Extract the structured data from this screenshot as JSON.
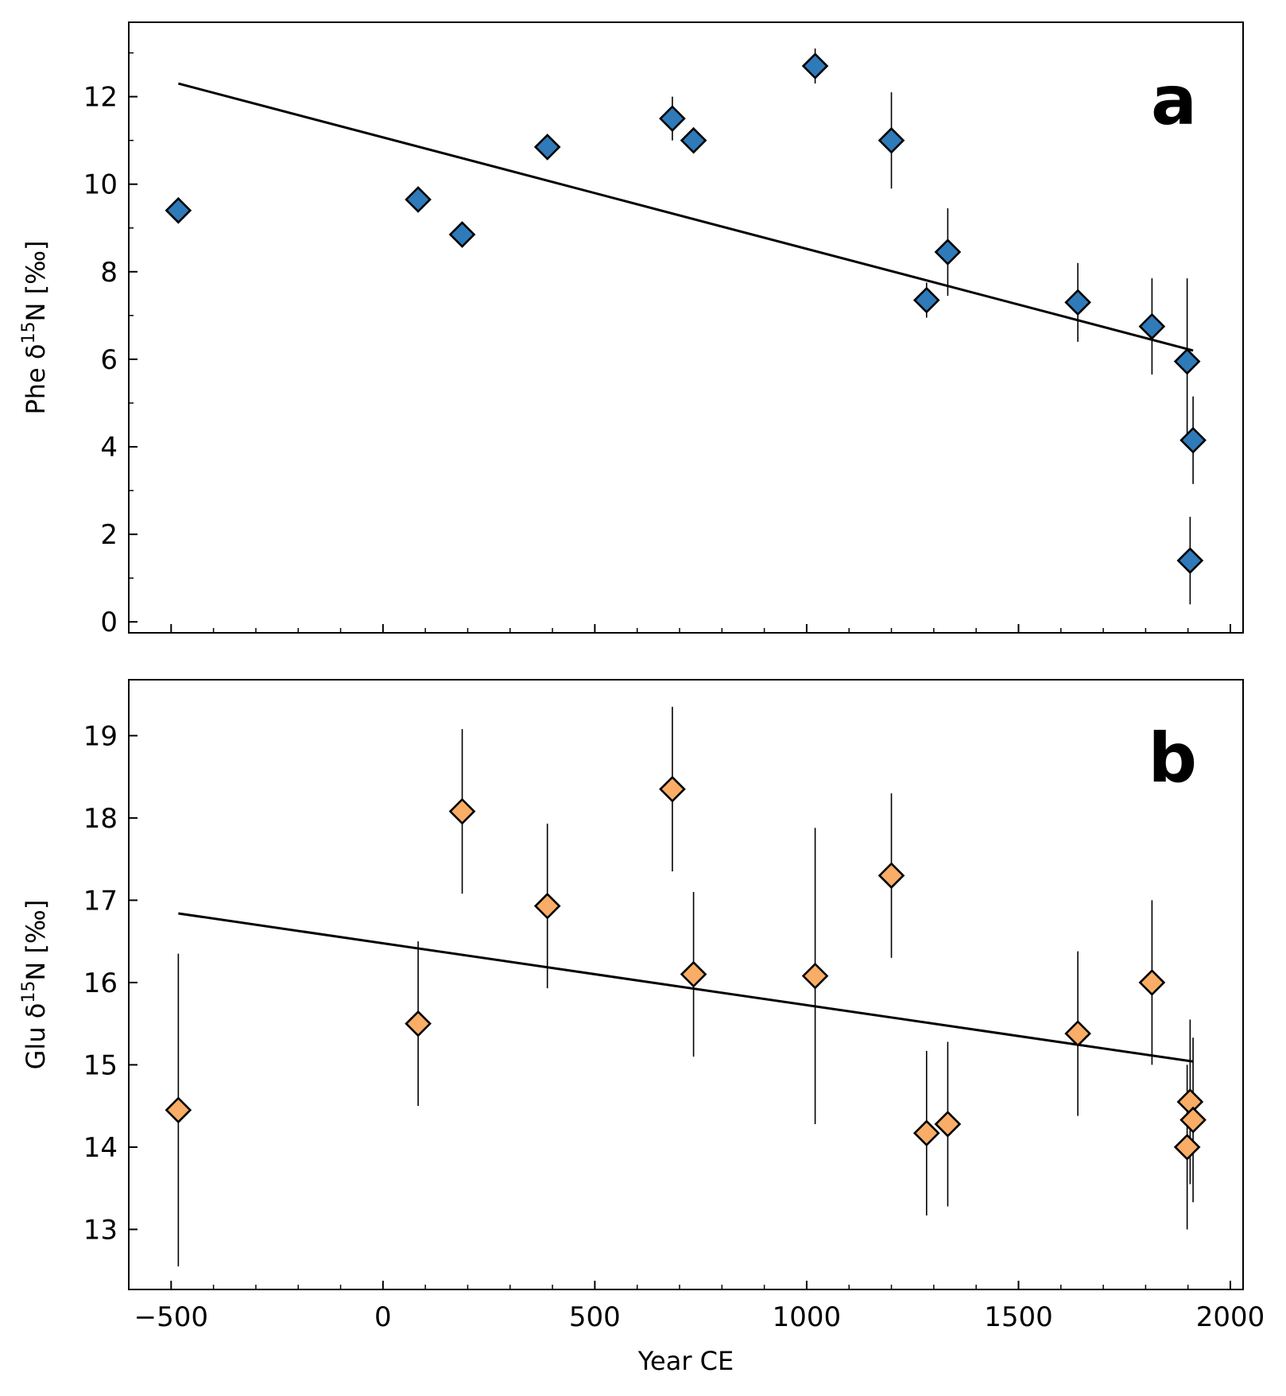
{
  "figure": {
    "xlabel": "Year CE"
  },
  "chart_data": [
    {
      "type": "scatter",
      "panel_letter": "a",
      "ylabel_prefix": "Phe δ",
      "ylabel_sup": "15",
      "ylabel_suffix": "N [‰]",
      "xlim": [
        -600,
        2030
      ],
      "ylim": [
        -0.25,
        13.7
      ],
      "xticks": [
        -500,
        0,
        500,
        1000,
        1500,
        2000
      ],
      "yticks": [
        0,
        2,
        4,
        6,
        8,
        10,
        12
      ],
      "marker": "diamond",
      "color": "#2f7ab9",
      "points": [
        {
          "x": -483,
          "y": 9.4,
          "err": 0
        },
        {
          "x": 83,
          "y": 9.65,
          "err": 0
        },
        {
          "x": 187,
          "y": 8.85,
          "err": 0
        },
        {
          "x": 388,
          "y": 10.85,
          "err": 0
        },
        {
          "x": 683,
          "y": 11.5,
          "err": 0.5
        },
        {
          "x": 733,
          "y": 11.0,
          "err": 0
        },
        {
          "x": 1020,
          "y": 12.7,
          "err": 0.4
        },
        {
          "x": 1200,
          "y": 11.0,
          "err": 1.1
        },
        {
          "x": 1283,
          "y": 7.35,
          "err": 0.4
        },
        {
          "x": 1333,
          "y": 8.45,
          "err": 1.0
        },
        {
          "x": 1640,
          "y": 7.3,
          "err": 0.9
        },
        {
          "x": 1815,
          "y": 6.75,
          "err": 1.1
        },
        {
          "x": 1898,
          "y": 5.95,
          "err": 1.9
        },
        {
          "x": 1905,
          "y": 1.4,
          "err": 1.0
        },
        {
          "x": 1912,
          "y": 4.15,
          "err": 1.0
        }
      ],
      "fit_line": {
        "x": [
          -483,
          1912
        ],
        "y": [
          12.3,
          6.2
        ]
      }
    },
    {
      "type": "scatter",
      "panel_letter": "b",
      "ylabel_prefix": "Glu δ",
      "ylabel_sup": "15",
      "ylabel_suffix": "N [‰]",
      "xlim": [
        -600,
        2030
      ],
      "ylim": [
        12.27,
        19.68
      ],
      "xticks": [
        -500,
        0,
        500,
        1000,
        1500,
        2000
      ],
      "yticks": [
        13,
        14,
        15,
        16,
        17,
        18,
        19
      ],
      "marker": "diamond",
      "color": "#f9ad66",
      "points": [
        {
          "x": -483,
          "y": 14.45,
          "err": 1.9
        },
        {
          "x": 83,
          "y": 15.5,
          "err": 1.0
        },
        {
          "x": 187,
          "y": 18.08,
          "err": 1.0
        },
        {
          "x": 388,
          "y": 16.93,
          "err": 1.0
        },
        {
          "x": 683,
          "y": 18.35,
          "err": 1.0
        },
        {
          "x": 733,
          "y": 16.1,
          "err": 1.0
        },
        {
          "x": 1020,
          "y": 16.08,
          "err": 1.8
        },
        {
          "x": 1200,
          "y": 17.3,
          "err": 1.0
        },
        {
          "x": 1283,
          "y": 14.17,
          "err": 1.0
        },
        {
          "x": 1333,
          "y": 14.28,
          "err": 1.0
        },
        {
          "x": 1640,
          "y": 15.38,
          "err": 1.0
        },
        {
          "x": 1815,
          "y": 16.0,
          "err": 1.0
        },
        {
          "x": 1898,
          "y": 14.0,
          "err": 1.0
        },
        {
          "x": 1905,
          "y": 14.55,
          "err": 1.0
        },
        {
          "x": 1912,
          "y": 14.33,
          "err": 1.0
        }
      ],
      "fit_line": {
        "x": [
          -483,
          1912
        ],
        "y": [
          16.84,
          15.04
        ]
      }
    }
  ]
}
